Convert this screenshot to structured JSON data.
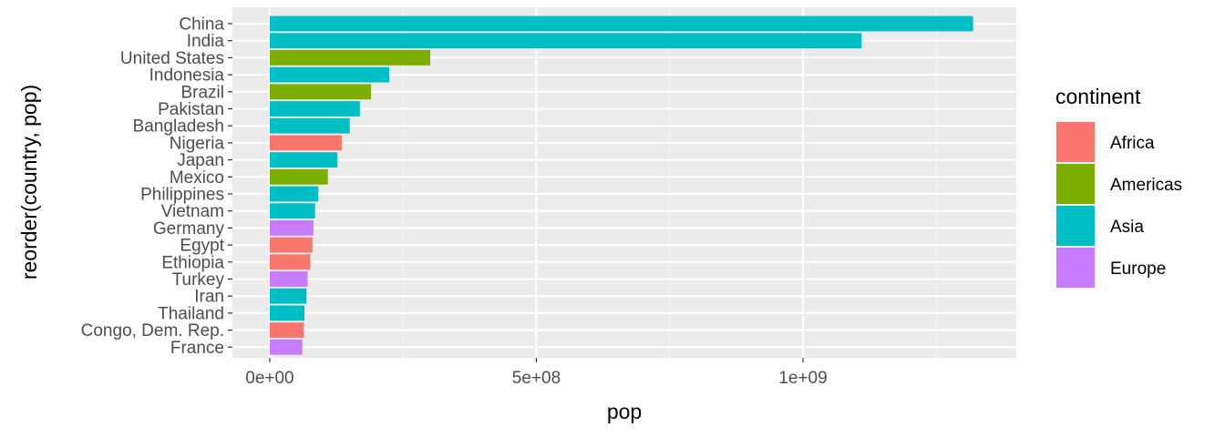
{
  "chart_data": {
    "type": "bar",
    "orientation": "horizontal",
    "xlabel": "pop",
    "ylabel": "reorder(country, pop)",
    "xlim": [
      -70000000,
      1400000000
    ],
    "x_ticks": [
      {
        "value": 0,
        "label": "0e+00"
      },
      {
        "value": 500000000,
        "label": "5e+08"
      },
      {
        "value": 1000000000,
        "label": "1e+09"
      }
    ],
    "x_minor_ticks": [
      250000000,
      750000000,
      1250000000
    ],
    "grid": true,
    "panel_background": "#ebebeb",
    "legend": {
      "title": "continent",
      "placement": "right",
      "entries": [
        {
          "name": "Africa",
          "color": "#F8766D"
        },
        {
          "name": "Americas",
          "color": "#7CAE00"
        },
        {
          "name": "Asia",
          "color": "#00BFC4"
        },
        {
          "name": "Europe",
          "color": "#C77CFF"
        }
      ]
    },
    "bars": [
      {
        "country": "China",
        "pop": 1319000000,
        "continent": "Asia"
      },
      {
        "country": "India",
        "pop": 1110000000,
        "continent": "Asia"
      },
      {
        "country": "United States",
        "pop": 301000000,
        "continent": "Americas"
      },
      {
        "country": "Indonesia",
        "pop": 224000000,
        "continent": "Asia"
      },
      {
        "country": "Brazil",
        "pop": 190000000,
        "continent": "Americas"
      },
      {
        "country": "Pakistan",
        "pop": 169000000,
        "continent": "Asia"
      },
      {
        "country": "Bangladesh",
        "pop": 150000000,
        "continent": "Asia"
      },
      {
        "country": "Nigeria",
        "pop": 135000000,
        "continent": "Africa"
      },
      {
        "country": "Japan",
        "pop": 127000000,
        "continent": "Asia"
      },
      {
        "country": "Mexico",
        "pop": 109000000,
        "continent": "Americas"
      },
      {
        "country": "Philippines",
        "pop": 91000000,
        "continent": "Asia"
      },
      {
        "country": "Vietnam",
        "pop": 85000000,
        "continent": "Asia"
      },
      {
        "country": "Germany",
        "pop": 82000000,
        "continent": "Europe"
      },
      {
        "country": "Egypt",
        "pop": 80000000,
        "continent": "Africa"
      },
      {
        "country": "Ethiopia",
        "pop": 76000000,
        "continent": "Africa"
      },
      {
        "country": "Turkey",
        "pop": 71000000,
        "continent": "Europe"
      },
      {
        "country": "Iran",
        "pop": 69000000,
        "continent": "Asia"
      },
      {
        "country": "Thailand",
        "pop": 65000000,
        "continent": "Asia"
      },
      {
        "country": "Congo, Dem. Rep.",
        "pop": 64000000,
        "continent": "Africa"
      },
      {
        "country": "France",
        "pop": 61000000,
        "continent": "Europe"
      }
    ]
  }
}
